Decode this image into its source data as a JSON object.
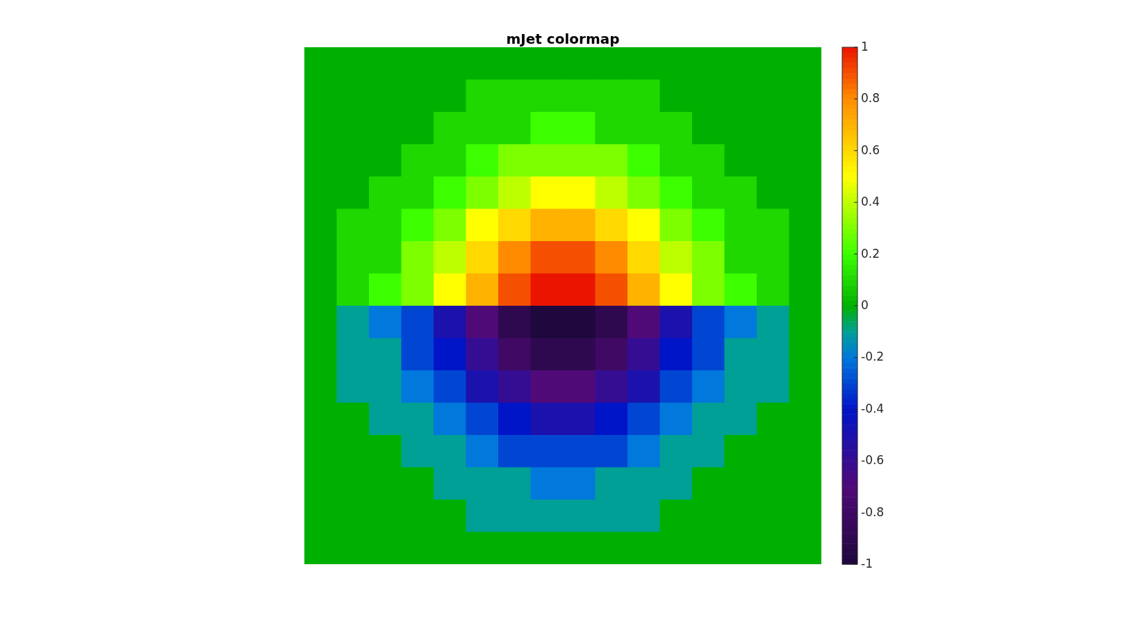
{
  "chart_data": {
    "type": "heatmap",
    "title": "mJet colormap",
    "categories": [
      null,
      null,
      null,
      null,
      null,
      null,
      null,
      null,
      null,
      null,
      null,
      null,
      null,
      null,
      null,
      null
    ],
    "y_categories": [
      null,
      null,
      null,
      null,
      null,
      null,
      null,
      null,
      null,
      null,
      null,
      null,
      null,
      null,
      null,
      null
    ],
    "cells": [
      [
        0,
        0,
        0,
        0,
        0,
        0,
        0,
        0,
        0,
        0,
        0,
        0,
        0,
        0,
        0,
        0
      ],
      [
        0,
        0,
        0,
        0,
        0,
        0.1,
        0.1,
        0.1,
        0.1,
        0.1,
        0.1,
        0,
        0,
        0,
        0,
        0
      ],
      [
        0,
        0,
        0,
        0,
        0.1,
        0.1,
        0.1,
        0.2,
        0.2,
        0.1,
        0.1,
        0.1,
        0,
        0,
        0,
        0
      ],
      [
        0,
        0,
        0,
        0.1,
        0.1,
        0.2,
        0.3,
        0.3,
        0.3,
        0.3,
        0.2,
        0.1,
        0.1,
        0,
        0,
        0
      ],
      [
        0,
        0,
        0.1,
        0.1,
        0.2,
        0.3,
        0.4,
        0.5,
        0.5,
        0.4,
        0.3,
        0.2,
        0.1,
        0.1,
        0,
        0
      ],
      [
        0,
        0.1,
        0.1,
        0.2,
        0.3,
        0.5,
        0.6,
        0.7,
        0.7,
        0.6,
        0.5,
        0.3,
        0.2,
        0.1,
        0.1,
        0
      ],
      [
        0,
        0.1,
        0.1,
        0.3,
        0.4,
        0.6,
        0.8,
        0.9,
        0.9,
        0.8,
        0.6,
        0.4,
        0.3,
        0.1,
        0.1,
        0
      ],
      [
        0,
        0.1,
        0.2,
        0.3,
        0.5,
        0.7,
        0.9,
        1,
        1,
        0.9,
        0.7,
        0.5,
        0.3,
        0.2,
        0.1,
        0
      ],
      [
        0,
        -0.1,
        -0.2,
        -0.3,
        -0.5,
        -0.7,
        -0.9,
        -1,
        -1,
        -0.9,
        -0.7,
        -0.5,
        -0.3,
        -0.2,
        -0.1,
        0
      ],
      [
        0,
        -0.1,
        -0.1,
        -0.3,
        -0.4,
        -0.6,
        -0.8,
        -0.9,
        -0.9,
        -0.8,
        -0.6,
        -0.4,
        -0.3,
        -0.1,
        -0.1,
        0
      ],
      [
        0,
        -0.1,
        -0.1,
        -0.2,
        -0.3,
        -0.5,
        -0.6,
        -0.7,
        -0.7,
        -0.6,
        -0.5,
        -0.3,
        -0.2,
        -0.1,
        -0.1,
        0
      ],
      [
        0,
        0,
        -0.1,
        -0.1,
        -0.2,
        -0.3,
        -0.4,
        -0.5,
        -0.5,
        -0.4,
        -0.3,
        -0.2,
        -0.1,
        -0.1,
        0,
        0
      ],
      [
        0,
        0,
        0,
        -0.1,
        -0.1,
        -0.2,
        -0.3,
        -0.3,
        -0.3,
        -0.3,
        -0.2,
        -0.1,
        -0.1,
        0,
        0,
        0
      ],
      [
        0,
        0,
        0,
        0,
        -0.1,
        -0.1,
        -0.1,
        -0.2,
        -0.2,
        -0.1,
        -0.1,
        -0.1,
        0,
        0,
        0,
        0
      ],
      [
        0,
        0,
        0,
        0,
        0,
        -0.1,
        -0.1,
        -0.1,
        -0.1,
        -0.1,
        -0.1,
        0,
        0,
        0,
        0,
        0
      ],
      [
        0,
        0,
        0,
        0,
        0,
        0,
        0,
        0,
        0,
        0,
        0,
        0,
        0,
        0,
        0,
        0
      ]
    ],
    "clim": [
      -1,
      1
    ],
    "cticks": [
      -1,
      -0.8,
      -0.6,
      -0.4,
      -0.2,
      0,
      0.2,
      0.4,
      0.6,
      0.8,
      1
    ]
  }
}
